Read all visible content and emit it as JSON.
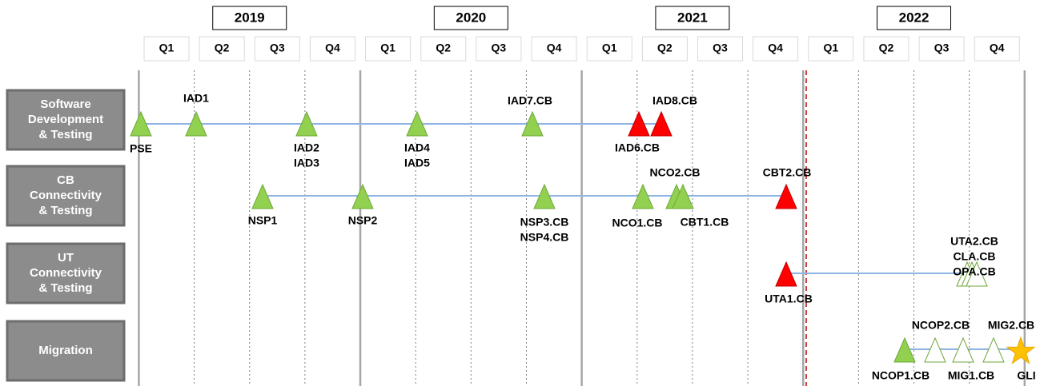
{
  "years": [
    "2019",
    "2020",
    "2021",
    "2022"
  ],
  "quarters": [
    "Q1",
    "Q2",
    "Q3",
    "Q4",
    "Q1",
    "Q2",
    "Q3",
    "Q4",
    "Q1",
    "Q2",
    "Q3",
    "Q4",
    "Q1",
    "Q2",
    "Q3",
    "Q4"
  ],
  "rows": [
    {
      "label": [
        "Software",
        "Development",
        "& Testing"
      ],
      "milestones": [
        {
          "label": [
            "PSE"
          ]
        },
        {
          "label": [
            "IAD1"
          ]
        },
        {
          "label": [
            "IAD2",
            "IAD3"
          ]
        },
        {
          "label": [
            "IAD4",
            "IAD5"
          ]
        },
        {
          "label": [
            "IAD7.CB"
          ]
        },
        {
          "label": [
            "IAD6.CB"
          ]
        },
        {
          "label": [
            "IAD8.CB"
          ]
        }
      ]
    },
    {
      "label": [
        "CB",
        "Connectivity",
        "& Testing"
      ],
      "milestones": [
        {
          "label": [
            "NSP1"
          ]
        },
        {
          "label": [
            "NSP2"
          ]
        },
        {
          "label": [
            "NSP3.CB",
            "NSP4.CB"
          ]
        },
        {
          "label": [
            "NCO1.CB"
          ]
        },
        {
          "label": [
            "NCO2.CB"
          ]
        },
        {
          "label": [
            "CBT1.CB"
          ]
        },
        {
          "label": [
            "CBT2.CB"
          ]
        }
      ]
    },
    {
      "label": [
        "UT",
        "Connectivity",
        "& Testing"
      ],
      "milestones": [
        {
          "label": [
            "UTA1.CB"
          ]
        },
        {
          "label": [
            "UTA2.CB",
            "CLA.CB",
            "OPA.CB"
          ]
        }
      ]
    },
    {
      "label": [
        "Migration"
      ],
      "milestones": [
        {
          "label": [
            "NCOP1.CB"
          ]
        },
        {
          "label": [
            "NCOP2.CB"
          ]
        },
        {
          "label": [
            "MIG1.CB"
          ]
        },
        {
          "label": [
            "MIG2.CB"
          ]
        },
        {
          "label": [
            "GLI"
          ]
        }
      ]
    }
  ]
}
